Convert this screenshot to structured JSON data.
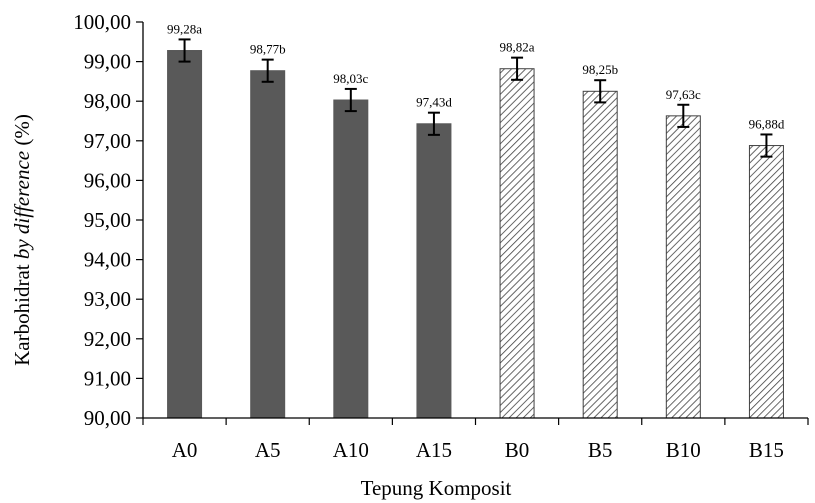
{
  "chart_data": {
    "type": "bar",
    "xlabel": "Tepung Komposit",
    "ylabel": {
      "prefix": "Karbohidrat ",
      "italic": "by difference",
      "suffix": " (%)"
    },
    "ylim": [
      90,
      100
    ],
    "y_ticks": [
      "90,00",
      "91,00",
      "92,00",
      "93,00",
      "94,00",
      "95,00",
      "96,00",
      "97,00",
      "98,00",
      "99,00",
      "100,00"
    ],
    "grid": false,
    "legend": "none",
    "categories": [
      "A0",
      "A5",
      "A10",
      "A15",
      "B0",
      "B5",
      "B10",
      "B15"
    ],
    "values": [
      99.28,
      98.77,
      98.03,
      97.43,
      98.82,
      98.25,
      97.63,
      96.88
    ],
    "errors": [
      0.28,
      0.28,
      0.28,
      0.28,
      0.28,
      0.28,
      0.28,
      0.28
    ],
    "labels": [
      "99,28a",
      "98,77b",
      "98,03c",
      "97,43d",
      "98,82a",
      "98,25b",
      "97,63c",
      "96,88d"
    ],
    "styles": [
      "solid",
      "solid",
      "solid",
      "solid",
      "hatched",
      "hatched",
      "hatched",
      "hatched"
    ],
    "colors": {
      "solid": "#595959",
      "hatch_line": "#404040",
      "hatch_bg": "#ffffff",
      "axis": "#000000"
    }
  }
}
